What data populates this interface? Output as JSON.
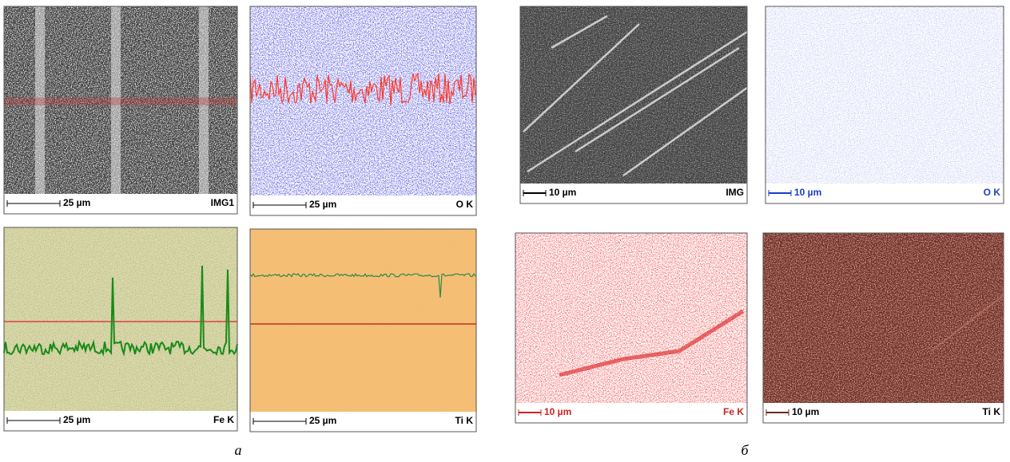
{
  "panels_a": [
    {
      "scale": "25 µm",
      "label": "IMG1"
    },
    {
      "scale": "25 µm",
      "label": "O K"
    },
    {
      "scale": "25 µm",
      "label": "Fe K"
    },
    {
      "scale": "25 µm",
      "label": "Ti K"
    }
  ],
  "caption_a": "а",
  "panels_b": [
    {
      "scale": "10 µm",
      "label": "IMG"
    },
    {
      "scale": "10 µm",
      "label": "O K"
    },
    {
      "scale": "10 µm",
      "label": "Fe K"
    },
    {
      "scale": "10 µm",
      "label": "Ti K"
    }
  ],
  "caption_b": "б"
}
